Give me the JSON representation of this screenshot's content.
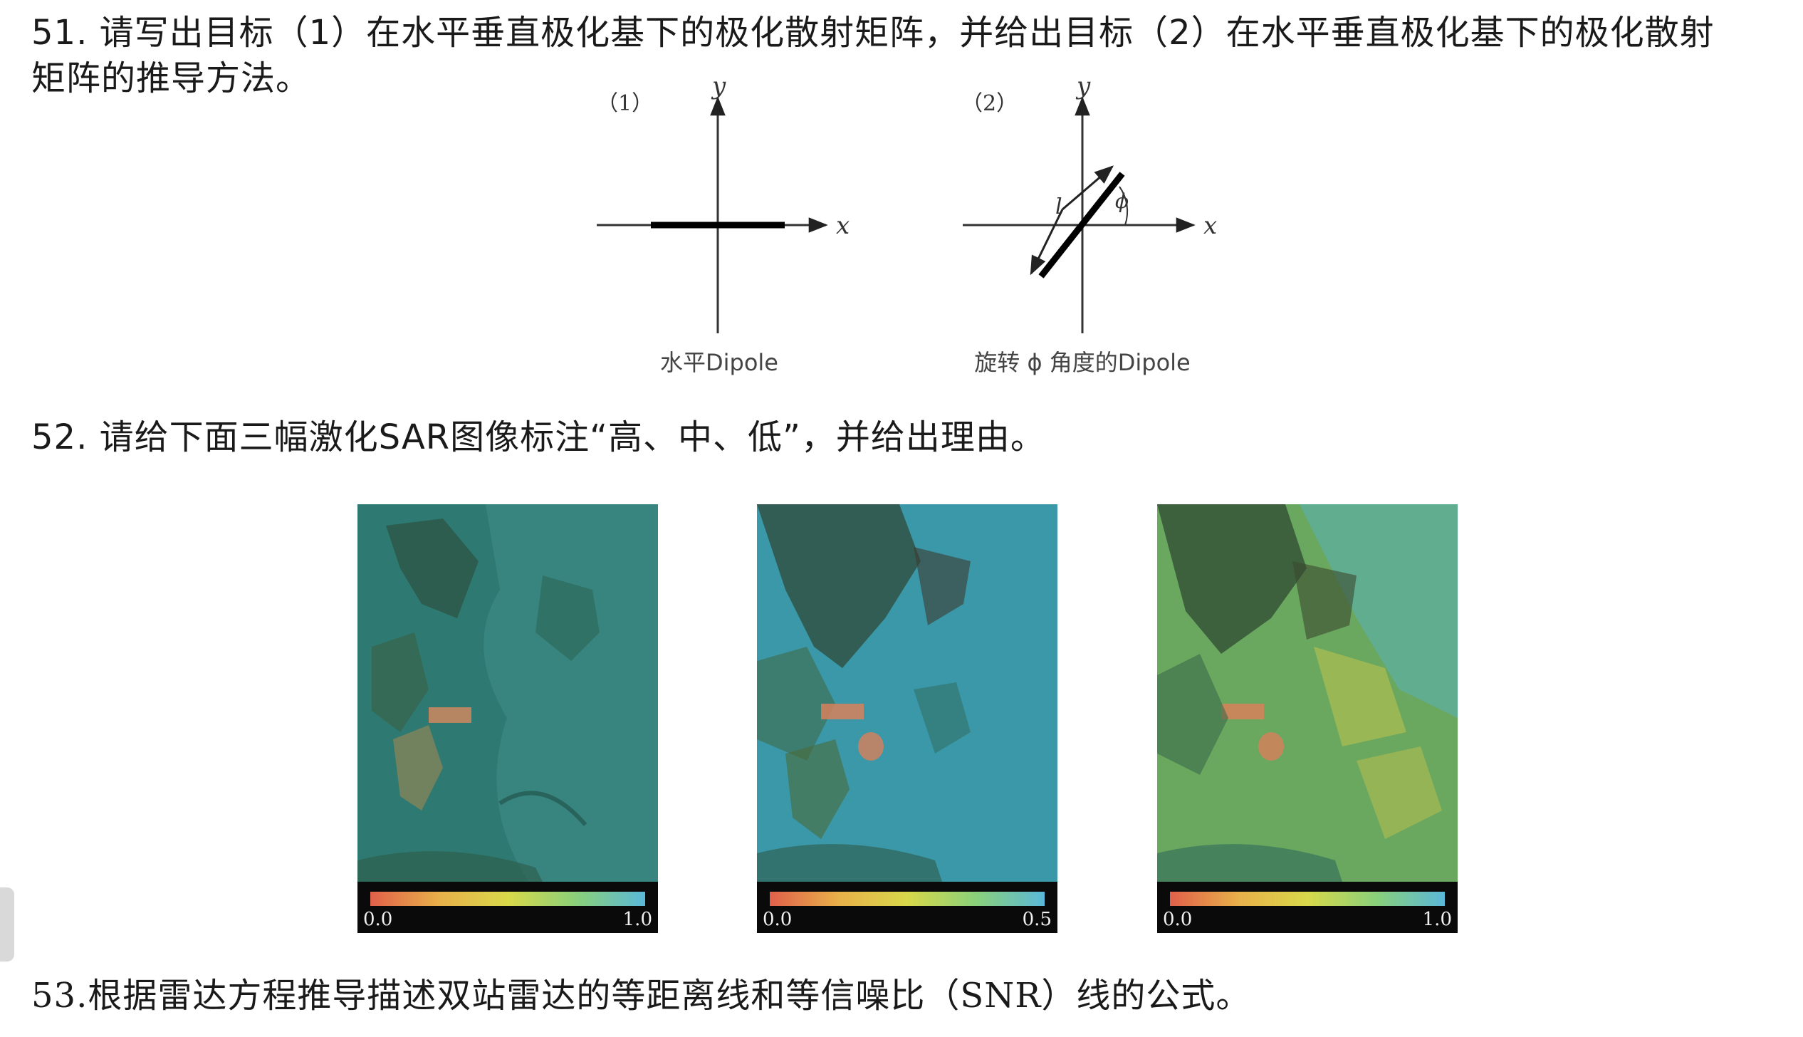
{
  "q51": {
    "line1": "51. 请写出目标（1）在水平垂直极化基下的极化散射矩阵，并给出目标（2）在水平垂直极化基下的极化散射",
    "line2": "矩阵的推导方法。"
  },
  "figure1": {
    "label": "（1）",
    "x_axis": "x",
    "y_axis": "y",
    "caption": "水平Dipole"
  },
  "figure2": {
    "label": "（2）",
    "x_axis": "x",
    "y_axis": "y",
    "length_label": "l",
    "angle_label": "ϕ",
    "caption": "旋转 ϕ 角度的Dipole"
  },
  "q52": {
    "text": "52. 请给下面三幅激化SAR图像标注“高、中、低”，并给出理由。"
  },
  "sar_images": [
    {
      "colorbar_min": "0.0",
      "colorbar_max": "1.0"
    },
    {
      "colorbar_min": "0.0",
      "colorbar_max": "0.5"
    },
    {
      "colorbar_min": "0.0",
      "colorbar_max": "1.0"
    }
  ],
  "q53": {
    "text": "53.根据雷达方程推导描述双站雷达的等距离线和等信噪比（SNR）线的公式。"
  }
}
